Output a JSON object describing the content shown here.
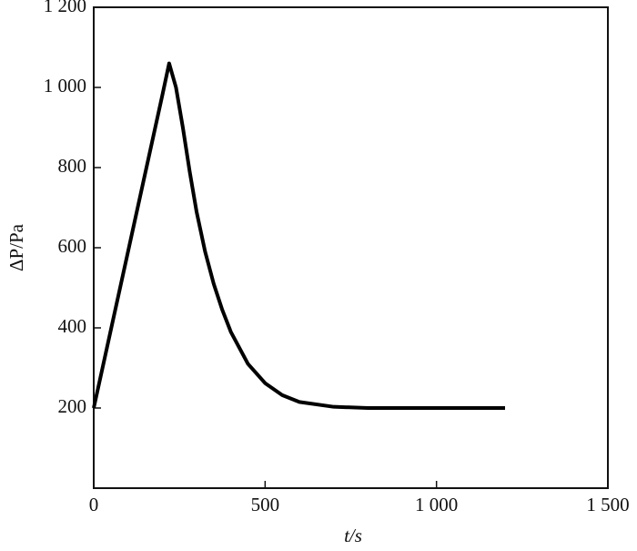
{
  "chart_data": {
    "type": "line",
    "x_label": "t/s",
    "y_label": "ΔP/Pa",
    "xlim": [
      0,
      1500
    ],
    "ylim": [
      0,
      1200
    ],
    "xticks": [
      0,
      500,
      {
        "value": 1000,
        "label": "1 000"
      },
      {
        "value": 1500,
        "label": "1 500"
      }
    ],
    "yticks": [
      200,
      400,
      600,
      800,
      {
        "value": 1000,
        "label": "1 000"
      },
      {
        "value": 1200,
        "label": "1 200"
      }
    ],
    "grid": false,
    "series": [
      {
        "color": "#000000",
        "x": [
          0,
          50,
          100,
          150,
          200,
          220,
          240,
          260,
          280,
          300,
          325,
          350,
          375,
          400,
          450,
          500,
          550,
          600,
          700,
          800,
          1000,
          1200
        ],
        "values": [
          200,
          395,
          590,
          785,
          980,
          1060,
          1000,
          900,
          790,
          690,
          590,
          510,
          445,
          390,
          310,
          262,
          232,
          215,
          203,
          200,
          200,
          200
        ]
      }
    ]
  }
}
